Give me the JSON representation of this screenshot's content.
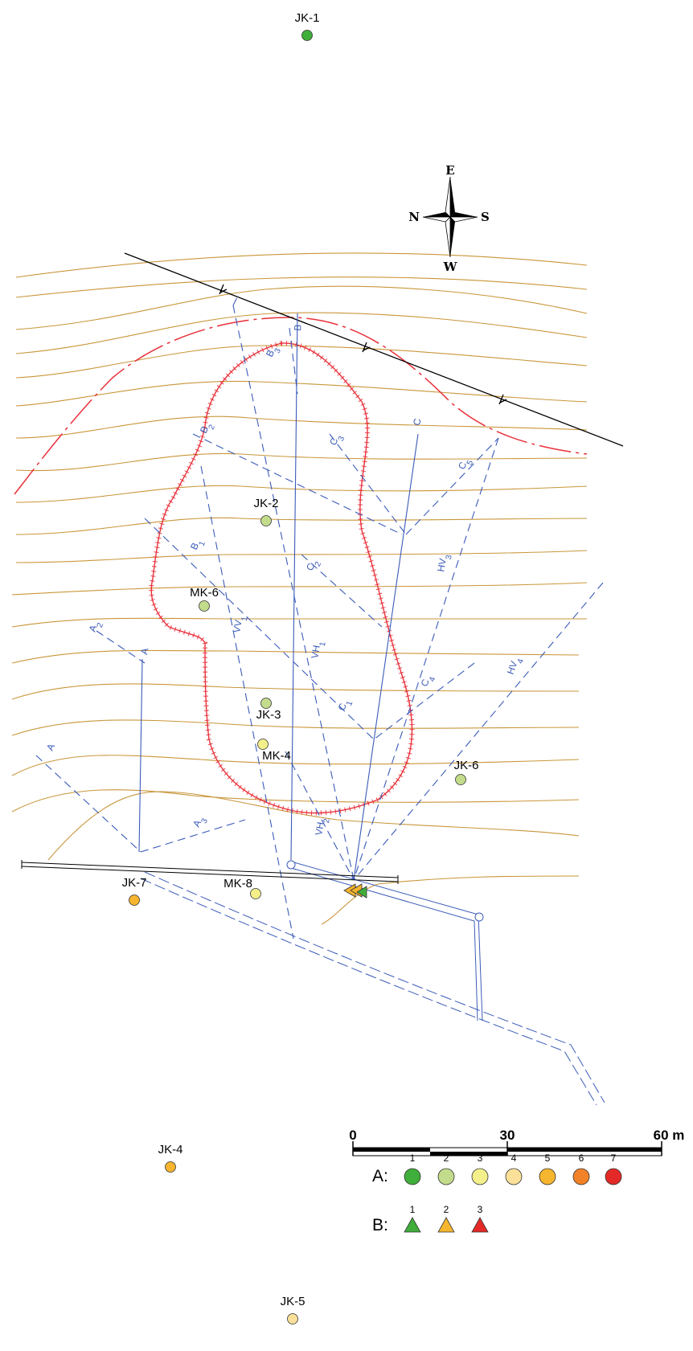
{
  "colors": {
    "contour": "#c9963a",
    "scarp": "#e8303a",
    "profile": "#3b5bb8",
    "fault": "#000000",
    "road": "#3b5bb8"
  },
  "compass": {
    "n": "N",
    "s": "S",
    "e": "E",
    "w": "W"
  },
  "wells": [
    {
      "id": "JK-1",
      "class": "1"
    },
    {
      "id": "JK-2",
      "class": "2"
    },
    {
      "id": "MK-6",
      "class": "2"
    },
    {
      "id": "JK-3",
      "class": "2"
    },
    {
      "id": "MK-4",
      "class": "3"
    },
    {
      "id": "JK-6",
      "class": "2"
    },
    {
      "id": "JK-7",
      "class": "5"
    },
    {
      "id": "MK-8",
      "class": "3"
    },
    {
      "id": "JK-4",
      "class": "5"
    },
    {
      "id": "JK-5",
      "class": "4"
    }
  ],
  "profiles": {
    "B": "B",
    "B3_main": "B",
    "B3_sub": "3",
    "B2_main": "B",
    "B2_sub": "2",
    "B1_main": "B",
    "B1_sub": "1",
    "C3_main": "C",
    "C3_sub": "3",
    "C": "C",
    "C5_main": "C",
    "C5_sub": "5",
    "HV3_main": "HV",
    "HV3_sub": "3",
    "C2_main": "C",
    "C2_sub": "2",
    "VH1_main": "VH",
    "VH1_sub": "1",
    "VV1_main": "VV",
    "VV1_sub": "1",
    "A2_main": "A",
    "A2_sub": "2",
    "A": "A",
    "C4_main": "C",
    "C4_sub": "4",
    "HV4_main": "HV",
    "HV4_sub": "4",
    "C1_main": "C",
    "C1_sub": "1",
    "A1": "A",
    "A3_main": "A",
    "A3_sub": "3",
    "VH2_main": "VH",
    "VH2_sub": "2"
  },
  "scale": {
    "labels": [
      "0",
      "30",
      "60 m"
    ]
  },
  "legend": {
    "a_title": "A:",
    "a_items": [
      {
        "label": "1",
        "color": "#3fae3a"
      },
      {
        "label": "2",
        "color": "#c3dc8c"
      },
      {
        "label": "3",
        "color": "#f3f08c"
      },
      {
        "label": "4",
        "color": "#fbe09a"
      },
      {
        "label": "5",
        "color": "#f6b52e"
      },
      {
        "label": "6",
        "color": "#f28227"
      },
      {
        "label": "7",
        "color": "#e42a28"
      }
    ],
    "b_title": "B:",
    "b_items": [
      {
        "label": "1",
        "color": "#3fae3a"
      },
      {
        "label": "2",
        "color": "#f6b52e"
      },
      {
        "label": "3",
        "color": "#e42a28"
      }
    ]
  }
}
